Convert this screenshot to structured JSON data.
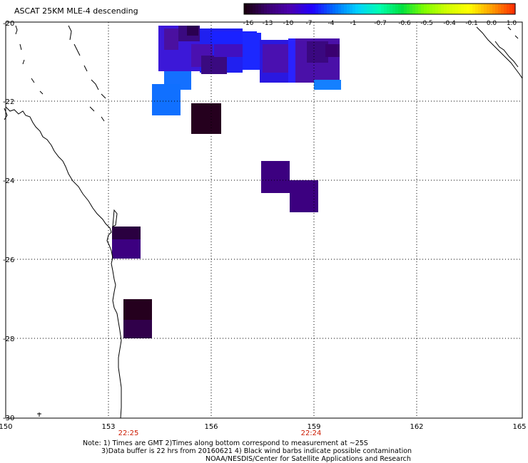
{
  "title": "ASCAT 25KM MLE-4 descending",
  "colorbar": {
    "labels": [
      "-16",
      "-13",
      "-10",
      "-7",
      "-4",
      "-1",
      "-0.7",
      "-0.6",
      "-0.5",
      "-0.4",
      "-0.1",
      "0.0",
      "1.0"
    ],
    "colors": [
      "#1a0010",
      "#3a0070",
      "#4b00b0",
      "#2000ff",
      "#0070ff",
      "#00d0ff",
      "#00ffb0",
      "#00e040",
      "#80ff00",
      "#d0ff00",
      "#ffff00",
      "#ffa000",
      "#ff3000"
    ]
  },
  "axes": {
    "lat_labels": [
      "-20",
      "-22",
      "-24",
      "-26",
      "-28",
      "-30"
    ],
    "lon_labels": [
      "150",
      "153",
      "156",
      "159",
      "162",
      "165"
    ]
  },
  "time_labels": [
    "22:25",
    "22:24"
  ],
  "note_lines": [
    "Note: 1) Times are GMT 2)Times along bottom correspond to measurement at ~25S",
    "3)Data buffer is 22 hrs from 20160621 4) Black wind barbs indicate possible contamination",
    "NOAA/NESDIS/Center for Satellite Applications and Research"
  ],
  "colors": {
    "dark_purple": "#25001e",
    "purple": "#3c0080",
    "indigo": "#4a10b0",
    "blue": "#1a1aff",
    "light_blue": "#1470ff"
  }
}
